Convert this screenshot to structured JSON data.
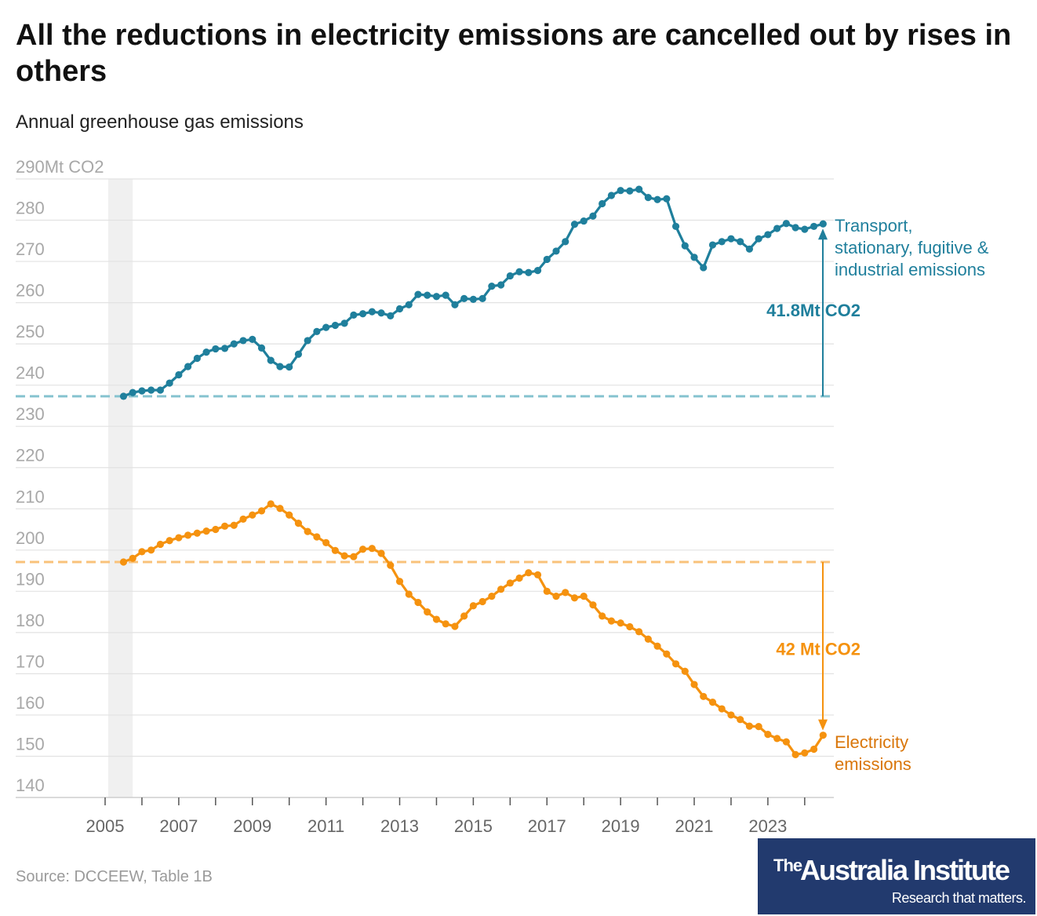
{
  "chart_data": {
    "type": "line",
    "title": "All the reductions in electricity emissions are cancelled out by rises in others",
    "subtitle": "Annual greenhouse gas emissions",
    "y_unit_label": "290Mt CO2",
    "ylim": [
      140,
      290
    ],
    "y_ticks": [
      140,
      150,
      160,
      170,
      180,
      190,
      200,
      210,
      220,
      230,
      240,
      250,
      260,
      270,
      280
    ],
    "x_ticks": [
      2005,
      2007,
      2009,
      2011,
      2013,
      2015,
      2017,
      2019,
      2021,
      2023
    ],
    "xlim": [
      2005,
      2024.6
    ],
    "grid": "horizontal",
    "series": [
      {
        "name": "Transport, stationary, fugitive & industrial emissions",
        "label_lines": [
          "Transport,",
          "stationary, fugitive &",
          "industrial emissions"
        ],
        "color": "#1f7f9c",
        "baseline": 237.3,
        "x": [
          2005.5,
          2005.75,
          2006,
          2006.25,
          2006.5,
          2006.75,
          2007,
          2007.25,
          2007.5,
          2007.75,
          2008,
          2008.25,
          2008.5,
          2008.75,
          2009,
          2009.25,
          2009.5,
          2009.75,
          2010,
          2010.25,
          2010.5,
          2010.75,
          2011,
          2011.25,
          2011.5,
          2011.75,
          2012,
          2012.25,
          2012.5,
          2012.75,
          2013,
          2013.25,
          2013.5,
          2013.75,
          2014,
          2014.25,
          2014.5,
          2014.75,
          2015,
          2015.25,
          2015.5,
          2015.75,
          2016,
          2016.25,
          2016.5,
          2016.75,
          2017,
          2017.25,
          2017.5,
          2017.75,
          2018,
          2018.25,
          2018.5,
          2018.75,
          2019,
          2019.25,
          2019.5,
          2019.75,
          2020,
          2020.25,
          2020.5,
          2020.75,
          2021,
          2021.25,
          2021.5,
          2021.75,
          2022,
          2022.25,
          2022.5,
          2022.75,
          2023,
          2023.25,
          2023.5,
          2023.75,
          2024,
          2024.25,
          2024.5
        ],
        "values": [
          237.3,
          238.2,
          238.6,
          238.8,
          238.8,
          240.5,
          242.5,
          244.5,
          246.5,
          248.0,
          248.8,
          248.9,
          250.0,
          250.8,
          251.1,
          249.0,
          246.0,
          244.5,
          244.4,
          247.5,
          250.8,
          253.0,
          254.0,
          254.5,
          255.0,
          257.0,
          257.3,
          257.8,
          257.5,
          256.8,
          258.5,
          259.5,
          262.0,
          261.8,
          261.5,
          261.8,
          259.5,
          261.0,
          260.8,
          261.0,
          264.0,
          264.3,
          266.5,
          267.5,
          267.3,
          267.8,
          270.5,
          272.5,
          274.8,
          279.0,
          279.8,
          281.0,
          284.0,
          286.0,
          287.2,
          287.1,
          287.5,
          285.5,
          285.0,
          285.2,
          278.5,
          273.8,
          271.0,
          268.5,
          274.0,
          274.8,
          275.5,
          274.8,
          273.0,
          275.5,
          276.5,
          278.0,
          279.2,
          278.2,
          277.8,
          278.5,
          279.1
        ]
      },
      {
        "name": "Electricity emissions",
        "label_lines": [
          "Electricity",
          "emissions"
        ],
        "color": "#f5920f",
        "label_color": "#d9760a",
        "baseline": 197.1,
        "x": [
          2005.5,
          2005.75,
          2006,
          2006.25,
          2006.5,
          2006.75,
          2007,
          2007.25,
          2007.5,
          2007.75,
          2008,
          2008.25,
          2008.5,
          2008.75,
          2009,
          2009.25,
          2009.5,
          2009.75,
          2010,
          2010.25,
          2010.5,
          2010.75,
          2011,
          2011.25,
          2011.5,
          2011.75,
          2012,
          2012.25,
          2012.5,
          2012.75,
          2013,
          2013.25,
          2013.5,
          2013.75,
          2014,
          2014.25,
          2014.5,
          2014.75,
          2015,
          2015.25,
          2015.5,
          2015.75,
          2016,
          2016.25,
          2016.5,
          2016.75,
          2017,
          2017.25,
          2017.5,
          2017.75,
          2018,
          2018.25,
          2018.5,
          2018.75,
          2019,
          2019.25,
          2019.5,
          2019.75,
          2020,
          2020.25,
          2020.5,
          2020.75,
          2021,
          2021.25,
          2021.5,
          2021.75,
          2022,
          2022.25,
          2022.5,
          2022.75,
          2023,
          2023.25,
          2023.5,
          2023.75,
          2024,
          2024.25,
          2024.5
        ],
        "values": [
          197.1,
          198.0,
          199.6,
          200.0,
          201.4,
          202.3,
          203.0,
          203.6,
          204.1,
          204.6,
          205.0,
          205.8,
          206.0,
          207.5,
          208.5,
          209.5,
          211.2,
          210.1,
          208.5,
          206.5,
          204.5,
          203.2,
          201.8,
          199.9,
          198.6,
          198.4,
          200.2,
          200.4,
          199.2,
          196.3,
          192.4,
          189.3,
          187.3,
          185.0,
          183.2,
          182.1,
          181.5,
          184.0,
          186.5,
          187.5,
          188.8,
          190.5,
          192.0,
          193.2,
          194.5,
          194.0,
          190.0,
          188.8,
          189.7,
          188.4,
          188.8,
          186.7,
          184.0,
          182.8,
          182.3,
          181.4,
          180.2,
          178.4,
          176.7,
          174.8,
          172.4,
          170.6,
          167.4,
          164.5,
          163.1,
          161.5,
          160.0,
          158.9,
          157.3,
          157.2,
          155.3,
          154.3,
          153.5,
          150.4,
          150.8,
          151.7,
          155.1
        ]
      }
    ],
    "annotations": [
      {
        "text": "41.8Mt CO2",
        "series": 0,
        "color": "#1f7f9c"
      },
      {
        "text": "42 Mt CO2",
        "series": 1,
        "color": "#f5920f"
      }
    ],
    "highlight_band": [
      2005.0,
      2005.75
    ],
    "source": "Source: DCCEEW, Table 1B",
    "logo": {
      "the": "The",
      "name": "Australia Institute",
      "tagline": "Research that matters."
    }
  }
}
